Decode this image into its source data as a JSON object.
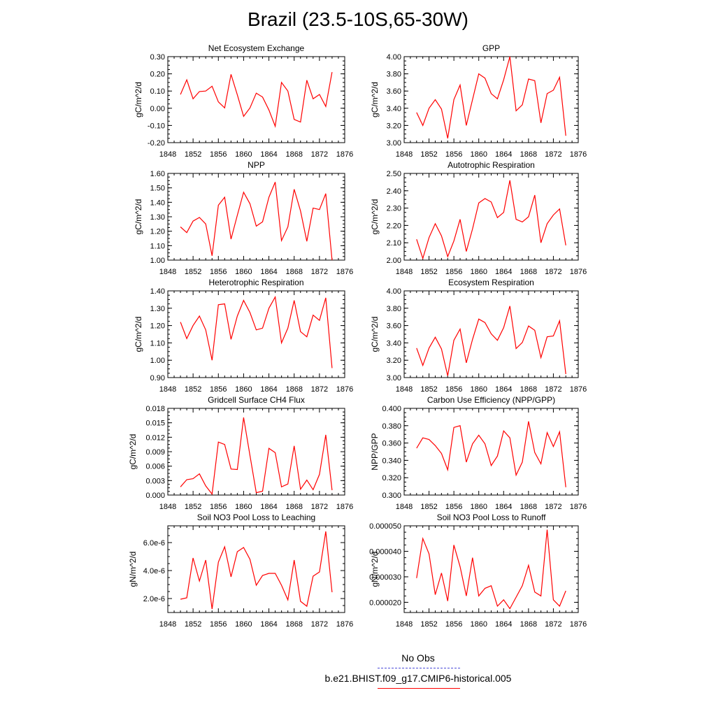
{
  "title": "Brazil (23.5-10S,65-30W)",
  "colors": {
    "series": "#ff0000",
    "obs": "#4b4bd8",
    "axis": "#000000"
  },
  "legend": {
    "obs_label": "No Obs",
    "model_label": "b.e21.BHIST.f09_g17.CMIP6-historical.005"
  },
  "chart_data": [
    {
      "type": "line",
      "title": "Net Ecosystem Exchange",
      "ylabel": "gC/m^2/d",
      "xlim": [
        1848,
        1876
      ],
      "ylim": [
        -0.2,
        0.3
      ],
      "xticks": [
        "1848",
        "1852",
        "1856",
        "1860",
        "1864",
        "1868",
        "1872",
        "1876"
      ],
      "yticks": [
        "-0.20",
        "-0.10",
        "0.00",
        "0.10",
        "0.20",
        "0.30"
      ],
      "yticks_values": [
        -0.2,
        -0.1,
        0.0,
        0.1,
        0.2,
        0.3
      ],
      "x": [
        1850,
        1851,
        1852,
        1853,
        1854,
        1855,
        1856,
        1857,
        1858,
        1859,
        1860,
        1861,
        1862,
        1863,
        1864,
        1865,
        1866,
        1867,
        1868,
        1869,
        1870,
        1871,
        1872,
        1873,
        1874
      ],
      "series": [
        {
          "values": [
            0.08,
            0.165,
            0.055,
            0.097,
            0.1,
            0.128,
            0.037,
            0.002,
            0.197,
            0.078,
            -0.047,
            0.002,
            0.088,
            0.065,
            -0.01,
            -0.105,
            0.15,
            0.1,
            -0.065,
            -0.08,
            0.163,
            0.055,
            0.08,
            0.01,
            0.21
          ]
        }
      ]
    },
    {
      "type": "line",
      "title": "GPP",
      "ylabel": "gC/m^2/d",
      "xlim": [
        1848,
        1876
      ],
      "ylim": [
        3.0,
        4.0
      ],
      "xticks": [
        "1848",
        "1852",
        "1856",
        "1860",
        "1864",
        "1868",
        "1872",
        "1876"
      ],
      "yticks": [
        "3.00",
        "3.20",
        "3.40",
        "3.60",
        "3.80",
        "4.00"
      ],
      "yticks_values": [
        3.0,
        3.2,
        3.4,
        3.6,
        3.8,
        4.0
      ],
      "x": [
        1850,
        1851,
        1852,
        1853,
        1854,
        1855,
        1856,
        1857,
        1858,
        1859,
        1860,
        1861,
        1862,
        1863,
        1864,
        1865,
        1866,
        1867,
        1868,
        1869,
        1870,
        1871,
        1872,
        1873,
        1874
      ],
      "series": [
        {
          "values": [
            3.35,
            3.2,
            3.4,
            3.5,
            3.39,
            3.05,
            3.5,
            3.67,
            3.2,
            3.5,
            3.8,
            3.75,
            3.57,
            3.51,
            3.73,
            4.0,
            3.37,
            3.44,
            3.74,
            3.72,
            3.23,
            3.57,
            3.61,
            3.76,
            3.08
          ]
        }
      ]
    },
    {
      "type": "line",
      "title": "NPP",
      "ylabel": "gC/m^2/d",
      "xlim": [
        1848,
        1876
      ],
      "ylim": [
        1.0,
        1.6
      ],
      "xticks": [
        "1848",
        "1852",
        "1856",
        "1860",
        "1864",
        "1868",
        "1872",
        "1876"
      ],
      "yticks": [
        "1.00",
        "1.10",
        "1.20",
        "1.30",
        "1.40",
        "1.50",
        "1.60"
      ],
      "yticks_values": [
        1.0,
        1.1,
        1.2,
        1.3,
        1.4,
        1.5,
        1.6
      ],
      "x": [
        1850,
        1851,
        1852,
        1853,
        1854,
        1855,
        1856,
        1857,
        1858,
        1859,
        1860,
        1861,
        1862,
        1863,
        1864,
        1865,
        1866,
        1867,
        1868,
        1869,
        1870,
        1871,
        1872,
        1873,
        1874
      ],
      "series": [
        {
          "values": [
            1.23,
            1.19,
            1.27,
            1.295,
            1.25,
            1.03,
            1.38,
            1.435,
            1.145,
            1.31,
            1.47,
            1.39,
            1.235,
            1.265,
            1.435,
            1.54,
            1.135,
            1.23,
            1.49,
            1.34,
            1.13,
            1.36,
            1.35,
            1.46,
            1.0
          ]
        }
      ]
    },
    {
      "type": "line",
      "title": "Autotrophic Respiration",
      "ylabel": "gC/m^2/d",
      "xlim": [
        1848,
        1876
      ],
      "ylim": [
        2.0,
        2.5
      ],
      "xticks": [
        "1848",
        "1852",
        "1856",
        "1860",
        "1864",
        "1868",
        "1872",
        "1876"
      ],
      "yticks": [
        "2.00",
        "2.10",
        "2.20",
        "2.30",
        "2.40",
        "2.50"
      ],
      "yticks_values": [
        2.0,
        2.1,
        2.2,
        2.3,
        2.4,
        2.5
      ],
      "x": [
        1850,
        1851,
        1852,
        1853,
        1854,
        1855,
        1856,
        1857,
        1858,
        1859,
        1860,
        1861,
        1862,
        1863,
        1864,
        1865,
        1866,
        1867,
        1868,
        1869,
        1870,
        1871,
        1872,
        1873,
        1874
      ],
      "series": [
        {
          "values": [
            2.12,
            2.01,
            2.13,
            2.21,
            2.14,
            2.02,
            2.11,
            2.235,
            2.05,
            2.18,
            2.33,
            2.355,
            2.335,
            2.245,
            2.275,
            2.46,
            2.235,
            2.22,
            2.25,
            2.375,
            2.1,
            2.21,
            2.26,
            2.295,
            2.085
          ]
        }
      ]
    },
    {
      "type": "line",
      "title": "Heterotrophic Respiration",
      "ylabel": "gC/m^2/d",
      "xlim": [
        1848,
        1876
      ],
      "ylim": [
        0.9,
        1.4
      ],
      "xticks": [
        "1848",
        "1852",
        "1856",
        "1860",
        "1864",
        "1868",
        "1872",
        "1876"
      ],
      "yticks": [
        "0.90",
        "1.00",
        "1.10",
        "1.20",
        "1.30",
        "1.40"
      ],
      "yticks_values": [
        0.9,
        1.0,
        1.1,
        1.2,
        1.3,
        1.4
      ],
      "x": [
        1850,
        1851,
        1852,
        1853,
        1854,
        1855,
        1856,
        1857,
        1858,
        1859,
        1860,
        1861,
        1862,
        1863,
        1864,
        1865,
        1866,
        1867,
        1868,
        1869,
        1870,
        1871,
        1872,
        1873,
        1874
      ],
      "series": [
        {
          "values": [
            1.22,
            1.125,
            1.2,
            1.255,
            1.175,
            1.0,
            1.32,
            1.325,
            1.12,
            1.255,
            1.345,
            1.275,
            1.175,
            1.185,
            1.3,
            1.365,
            1.1,
            1.185,
            1.345,
            1.165,
            1.135,
            1.26,
            1.23,
            1.36,
            0.955
          ]
        }
      ]
    },
    {
      "type": "line",
      "title": "Ecosystem Respiration",
      "ylabel": "gC/m^2/d",
      "xlim": [
        1848,
        1876
      ],
      "ylim": [
        3.0,
        4.0
      ],
      "xticks": [
        "1848",
        "1852",
        "1856",
        "1860",
        "1864",
        "1868",
        "1872",
        "1876"
      ],
      "yticks": [
        "3.00",
        "3.20",
        "3.40",
        "3.60",
        "3.80",
        "4.00"
      ],
      "yticks_values": [
        3.0,
        3.2,
        3.4,
        3.6,
        3.8,
        4.0
      ],
      "x": [
        1850,
        1851,
        1852,
        1853,
        1854,
        1855,
        1856,
        1857,
        1858,
        1859,
        1860,
        1861,
        1862,
        1863,
        1864,
        1865,
        1866,
        1867,
        1868,
        1869,
        1870,
        1871,
        1872,
        1873,
        1874
      ],
      "series": [
        {
          "values": [
            3.34,
            3.14,
            3.34,
            3.465,
            3.33,
            3.02,
            3.43,
            3.56,
            3.17,
            3.44,
            3.675,
            3.635,
            3.505,
            3.43,
            3.575,
            3.825,
            3.335,
            3.405,
            3.595,
            3.545,
            3.23,
            3.47,
            3.48,
            3.655,
            3.04
          ]
        }
      ]
    },
    {
      "type": "line",
      "title": "Gridcell Surface CH4 Flux",
      "ylabel": "gC/m^2/d",
      "xlim": [
        1848,
        1876
      ],
      "ylim": [
        0.0,
        0.018
      ],
      "xticks": [
        "1848",
        "1852",
        "1856",
        "1860",
        "1864",
        "1868",
        "1872",
        "1876"
      ],
      "yticks": [
        "0.000",
        "0.003",
        "0.006",
        "0.009",
        "0.012",
        "0.015",
        "0.018"
      ],
      "yticks_values": [
        0.0,
        0.003,
        0.006,
        0.009,
        0.012,
        0.015,
        0.018
      ],
      "x": [
        1850,
        1851,
        1852,
        1853,
        1854,
        1855,
        1856,
        1857,
        1858,
        1859,
        1860,
        1861,
        1862,
        1863,
        1864,
        1865,
        1866,
        1867,
        1868,
        1869,
        1870,
        1871,
        1872,
        1873,
        1874
      ],
      "series": [
        {
          "values": [
            0.0017,
            0.0032,
            0.0034,
            0.0044,
            0.0019,
            0.0002,
            0.011,
            0.0105,
            0.0054,
            0.0053,
            0.0161,
            0.0082,
            0.0005,
            0.0008,
            0.0097,
            0.0088,
            0.0017,
            0.0023,
            0.0102,
            0.0012,
            0.0031,
            0.0011,
            0.0043,
            0.0125,
            0.001
          ]
        }
      ]
    },
    {
      "type": "line",
      "title": "Carbon Use Efficiency (NPP/GPP)",
      "ylabel": "NPP/GPP",
      "xlim": [
        1848,
        1876
      ],
      "ylim": [
        0.3,
        0.4
      ],
      "xticks": [
        "1848",
        "1852",
        "1856",
        "1860",
        "1864",
        "1868",
        "1872",
        "1876"
      ],
      "yticks": [
        "0.300",
        "0.320",
        "0.340",
        "0.360",
        "0.380",
        "0.400"
      ],
      "yticks_values": [
        0.3,
        0.32,
        0.34,
        0.36,
        0.38,
        0.4
      ],
      "x": [
        1850,
        1851,
        1852,
        1853,
        1854,
        1855,
        1856,
        1857,
        1858,
        1859,
        1860,
        1861,
        1862,
        1863,
        1864,
        1865,
        1866,
        1867,
        1868,
        1869,
        1870,
        1871,
        1872,
        1873,
        1874
      ],
      "series": [
        {
          "values": [
            0.354,
            0.366,
            0.364,
            0.357,
            0.348,
            0.329,
            0.378,
            0.38,
            0.338,
            0.359,
            0.369,
            0.359,
            0.334,
            0.345,
            0.374,
            0.366,
            0.323,
            0.338,
            0.385,
            0.349,
            0.336,
            0.372,
            0.356,
            0.373,
            0.309
          ]
        }
      ]
    },
    {
      "type": "line",
      "title": "Soil NO3 Pool Loss to Leaching",
      "ylabel": "gN/m^2/d",
      "xlim": [
        1848,
        1876
      ],
      "ylim": [
        1e-06,
        7.2e-06
      ],
      "xticks": [
        "1848",
        "1852",
        "1856",
        "1860",
        "1864",
        "1868",
        "1872",
        "1876"
      ],
      "yticks": [
        "2.0e-6",
        "4.0e-6",
        "6.0e-6"
      ],
      "yticks_values": [
        2e-06,
        4e-06,
        6e-06
      ],
      "x": [
        1850,
        1851,
        1852,
        1853,
        1854,
        1855,
        1856,
        1857,
        1858,
        1859,
        1860,
        1861,
        1862,
        1863,
        1864,
        1865,
        1866,
        1867,
        1868,
        1869,
        1870,
        1871,
        1872,
        1873,
        1874
      ],
      "series": [
        {
          "values": [
            1.95e-06,
            2.05e-06,
            4.9e-06,
            3.25e-06,
            4.75e-06,
            1.25e-06,
            4.6e-06,
            5.7e-06,
            3.55e-06,
            5.35e-06,
            5.65e-06,
            4.8e-06,
            2.95e-06,
            3.65e-06,
            3.8e-06,
            3.8e-06,
            2.95e-06,
            1.9e-06,
            4.75e-06,
            1.8e-06,
            1.45e-06,
            3.6e-06,
            3.9e-06,
            6.8e-06,
            2.45e-06
          ]
        }
      ]
    },
    {
      "type": "line",
      "title": "Soil NO3 Pool Loss to Runoff",
      "ylabel": "gN/m^2/d",
      "xlim": [
        1848,
        1876
      ],
      "ylim": [
        1.6e-05,
        5e-05
      ],
      "xticks": [
        "1848",
        "1852",
        "1856",
        "1860",
        "1864",
        "1868",
        "1872",
        "1876"
      ],
      "yticks": [
        "0.000020",
        "0.000030",
        "0.000040",
        "0.000050"
      ],
      "yticks_values": [
        2e-05,
        3e-05,
        4e-05,
        5e-05
      ],
      "x": [
        1850,
        1851,
        1852,
        1853,
        1854,
        1855,
        1856,
        1857,
        1858,
        1859,
        1860,
        1861,
        1862,
        1863,
        1864,
        1865,
        1866,
        1867,
        1868,
        1869,
        1870,
        1871,
        1872,
        1873,
        1874
      ],
      "series": [
        {
          "values": [
            2.95e-05,
            4.5e-05,
            3.9e-05,
            2.3e-05,
            3.15e-05,
            2.05e-05,
            4.25e-05,
            3.4e-05,
            2.25e-05,
            3.75e-05,
            2.25e-05,
            2.55e-05,
            2.65e-05,
            1.85e-05,
            2.1e-05,
            1.75e-05,
            2.2e-05,
            2.65e-05,
            3.45e-05,
            2.4e-05,
            2.25e-05,
            4.85e-05,
            2.1e-05,
            1.85e-05,
            2.45e-05
          ]
        }
      ]
    }
  ]
}
